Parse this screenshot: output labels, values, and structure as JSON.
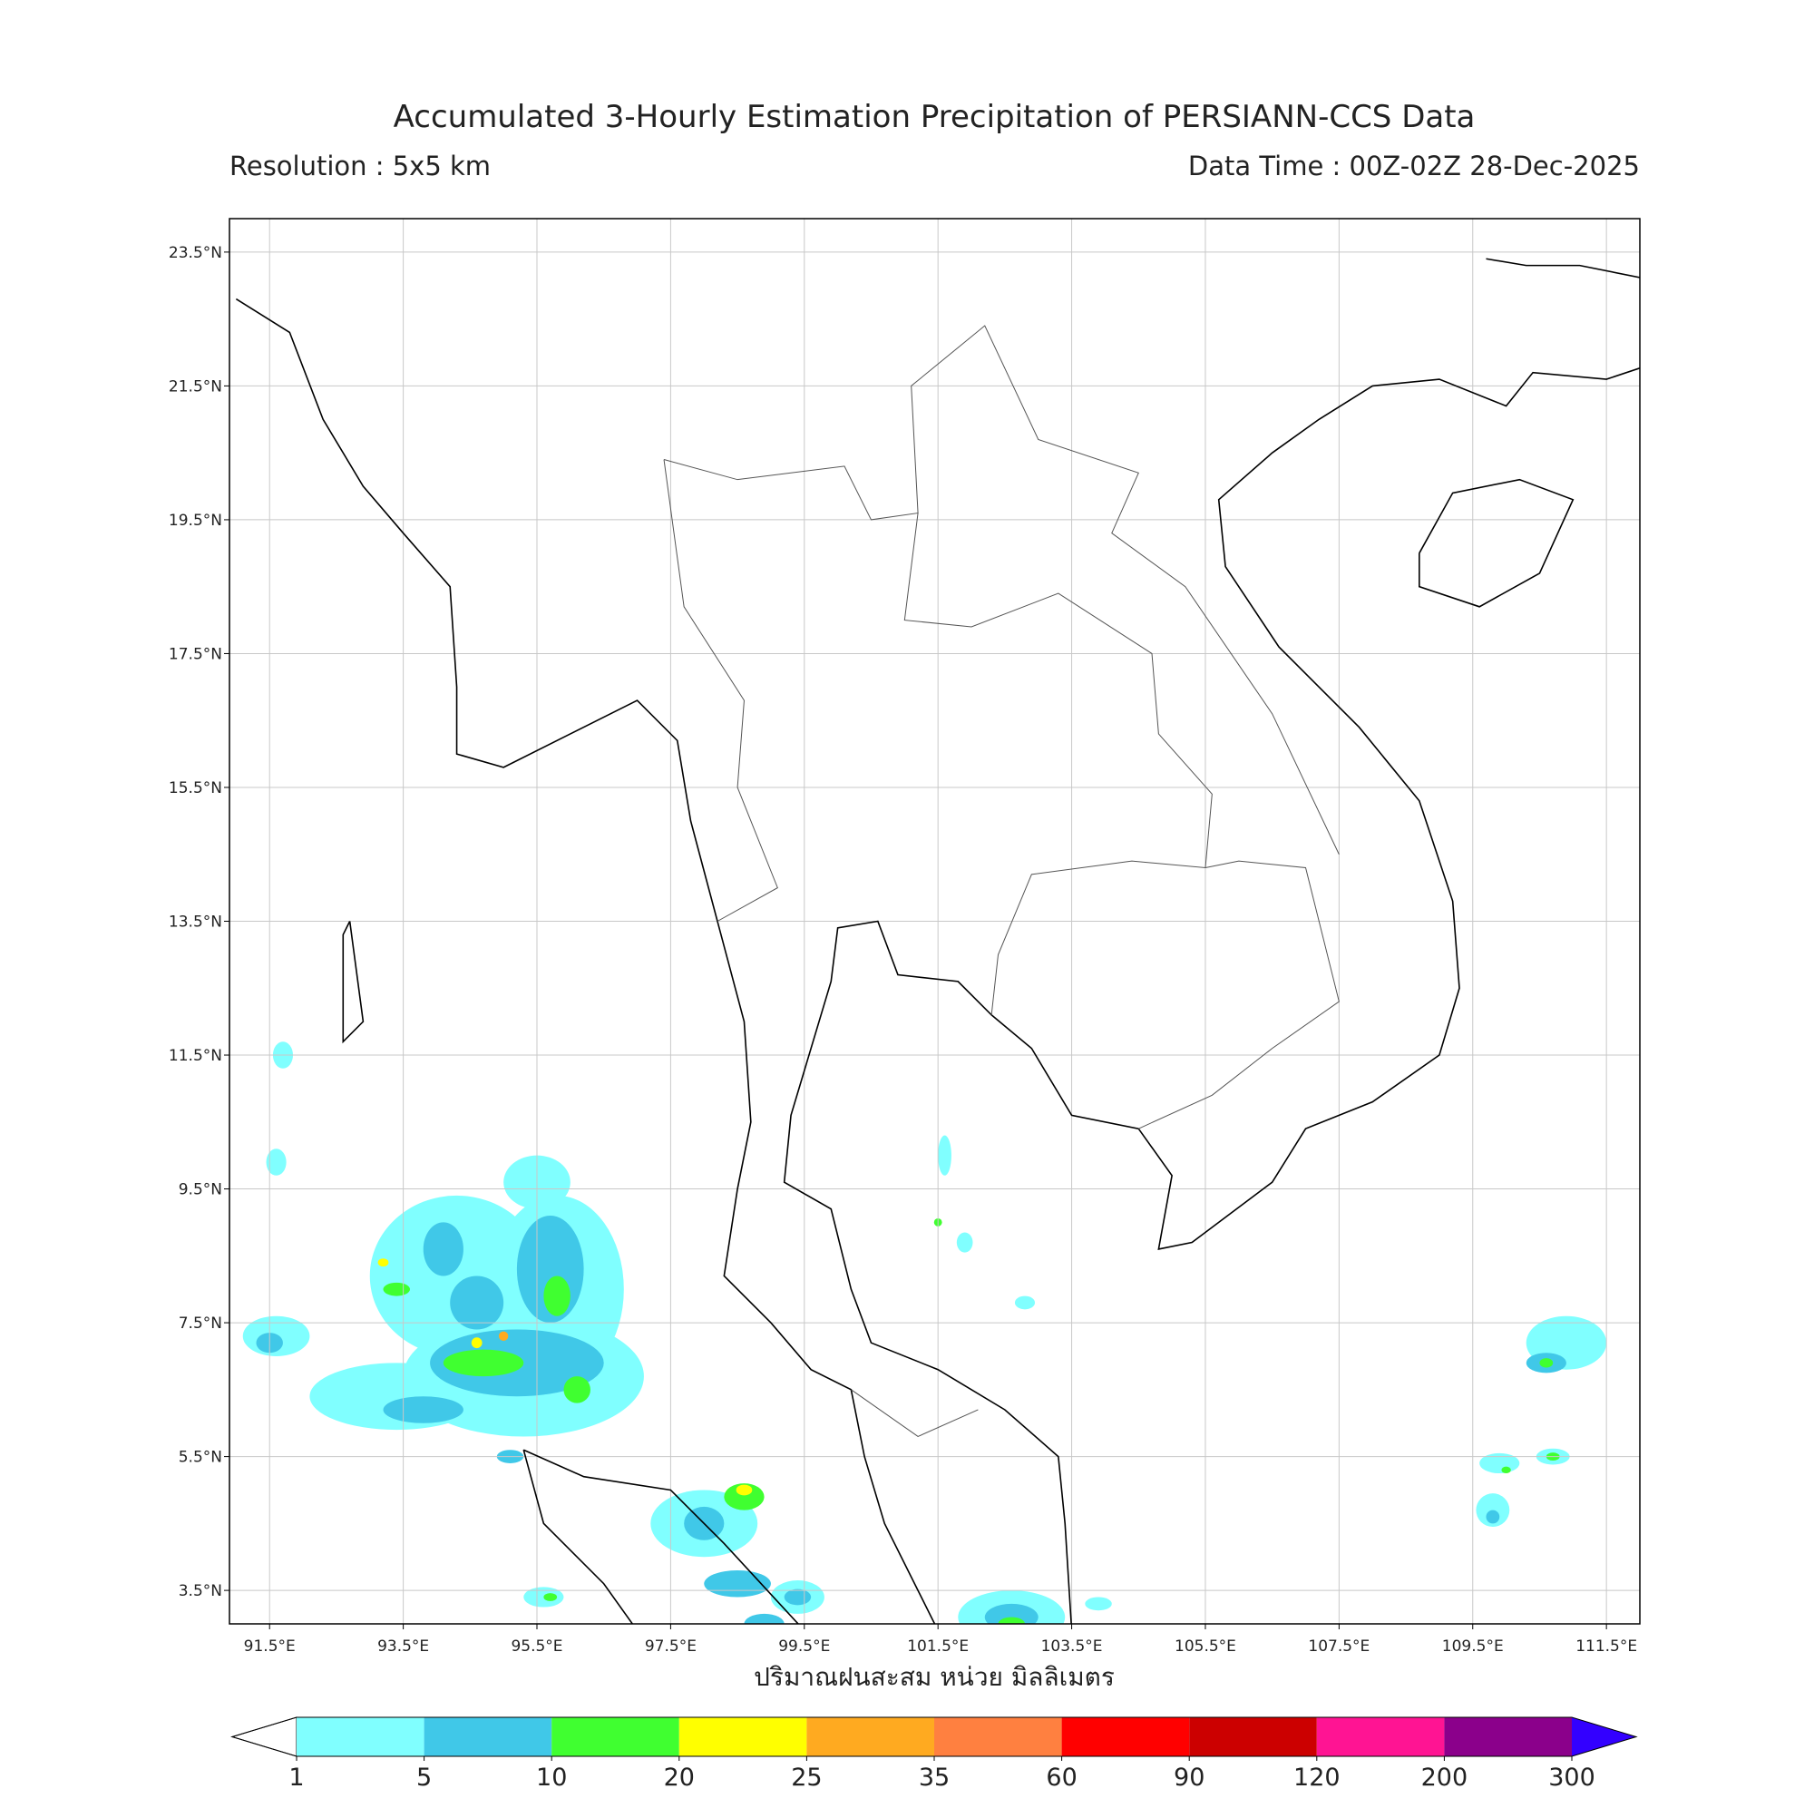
{
  "map": {
    "title": "Accumulated 3-Hourly Estimation Precipitation of PERSIANN-CCS Data",
    "resolution": "Resolution : 5x5 km",
    "data_time": "Data Time : 00Z-02Z 28-Dec-2025",
    "xlabel": "ปริมาณฝนสะสม หน่วย มิลลิเมตร",
    "lonlim": [
      90.9,
      112.0
    ],
    "latlim": [
      3.0,
      24.0
    ],
    "grid": true,
    "lon_ticks": [
      {
        "value": 91.5,
        "label": "91.5°E"
      },
      {
        "value": 93.5,
        "label": "93.5°E"
      },
      {
        "value": 95.5,
        "label": "95.5°E"
      },
      {
        "value": 97.5,
        "label": "97.5°E"
      },
      {
        "value": 99.5,
        "label": "99.5°E"
      },
      {
        "value": 101.5,
        "label": "101.5°E"
      },
      {
        "value": 103.5,
        "label": "103.5°E"
      },
      {
        "value": 105.5,
        "label": "105.5°E"
      },
      {
        "value": 107.5,
        "label": "107.5°E"
      },
      {
        "value": 109.5,
        "label": "109.5°E"
      },
      {
        "value": 111.5,
        "label": "111.5°E"
      }
    ],
    "lat_ticks": [
      {
        "value": 23.5,
        "label": "23.5°N"
      },
      {
        "value": 21.5,
        "label": "21.5°N"
      },
      {
        "value": 19.5,
        "label": "19.5°N"
      },
      {
        "value": 17.5,
        "label": "17.5°N"
      },
      {
        "value": 15.5,
        "label": "15.5°N"
      },
      {
        "value": 13.5,
        "label": "13.5°N"
      },
      {
        "value": 11.5,
        "label": "11.5°N"
      },
      {
        "value": 9.5,
        "label": "9.5°N"
      },
      {
        "value": 7.5,
        "label": "7.5°N"
      },
      {
        "value": 5.5,
        "label": "5.5°N"
      },
      {
        "value": 3.5,
        "label": "3.5°N"
      }
    ],
    "colorbar": {
      "bounds": [
        1,
        5,
        10,
        20,
        25,
        35,
        60,
        90,
        120,
        200,
        300
      ],
      "colors": [
        "#80ffff",
        "#40c8e8",
        "#40ff30",
        "#ffff00",
        "#ffaa20",
        "#ff8040",
        "#ff0000",
        "#cc0000",
        "#ff1493",
        "#8b008b"
      ],
      "under_color": "#ffffff",
      "over_color": "#3300ff"
    }
  }
}
